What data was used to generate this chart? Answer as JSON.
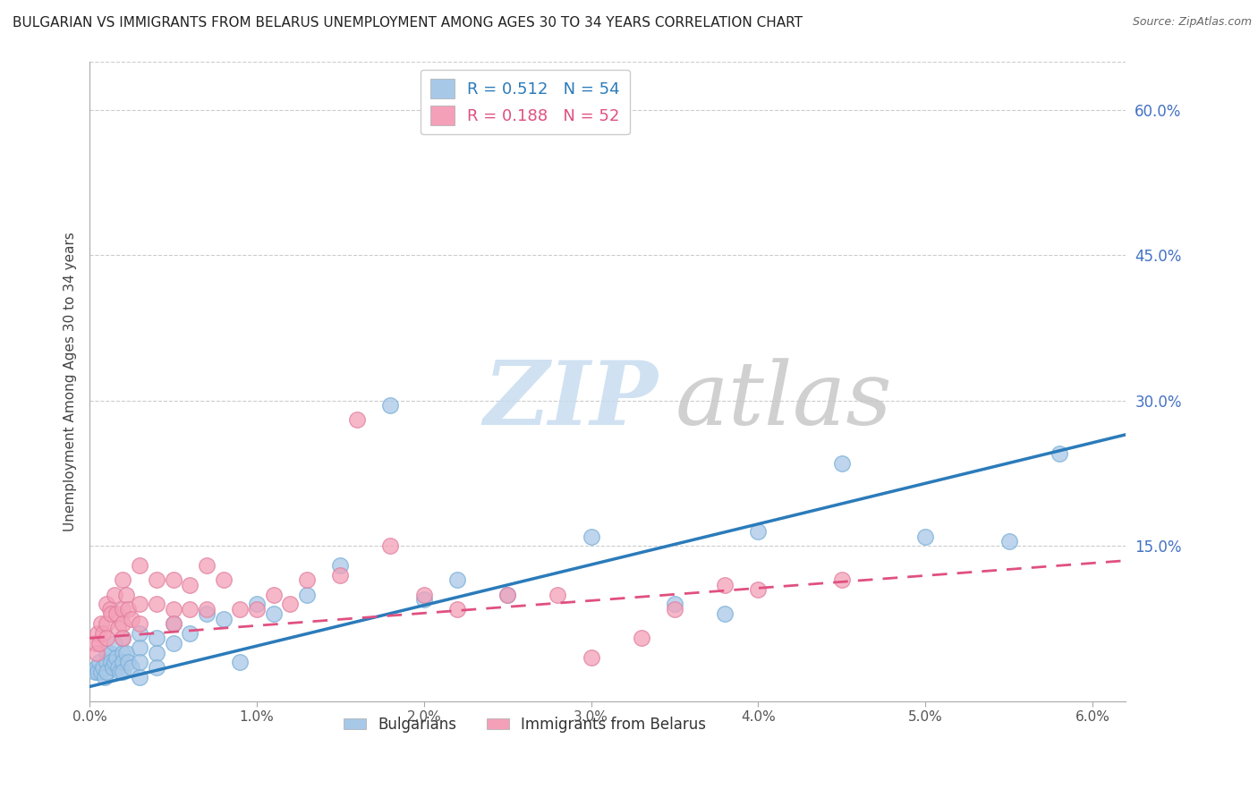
{
  "title": "BULGARIAN VS IMMIGRANTS FROM BELARUS UNEMPLOYMENT AMONG AGES 30 TO 34 YEARS CORRELATION CHART",
  "source": "Source: ZipAtlas.com",
  "ylabel": "Unemployment Among Ages 30 to 34 years",
  "xlim": [
    0.0,
    0.062
  ],
  "ylim": [
    -0.01,
    0.65
  ],
  "xticks": [
    0.0,
    0.01,
    0.02,
    0.03,
    0.04,
    0.05,
    0.06
  ],
  "xticklabels": [
    "0.0%",
    "1.0%",
    "2.0%",
    "3.0%",
    "4.0%",
    "5.0%",
    "6.0%"
  ],
  "yticks_right": [
    0.15,
    0.3,
    0.45,
    0.6
  ],
  "ytick_right_labels": [
    "15.0%",
    "30.0%",
    "45.0%",
    "60.0%"
  ],
  "grid_color": "#cccccc",
  "background_color": "#ffffff",
  "blue_color": "#a8c8e8",
  "pink_color": "#f4a0b8",
  "blue_line_color": "#2b7bba",
  "pink_line_color": "#e05080",
  "watermark_zip_color": "#c8dcf0",
  "watermark_atlas_color": "#c8c8c8",
  "title_fontsize": 11,
  "label_fontsize": 11,
  "tick_fontsize": 11,
  "blue_trend_x": [
    0.0,
    0.062
  ],
  "blue_trend_y": [
    0.005,
    0.265
  ],
  "pink_trend_x": [
    0.0,
    0.062
  ],
  "pink_trend_y": [
    0.055,
    0.135
  ],
  "blue_scatter_x": [
    0.0003,
    0.0004,
    0.0005,
    0.0006,
    0.0007,
    0.0008,
    0.0009,
    0.001,
    0.001,
    0.001,
    0.0012,
    0.0013,
    0.0014,
    0.0015,
    0.0015,
    0.0016,
    0.0017,
    0.0018,
    0.002,
    0.002,
    0.002,
    0.002,
    0.0022,
    0.0023,
    0.0025,
    0.003,
    0.003,
    0.003,
    0.003,
    0.004,
    0.004,
    0.004,
    0.005,
    0.005,
    0.006,
    0.007,
    0.008,
    0.009,
    0.01,
    0.011,
    0.013,
    0.015,
    0.018,
    0.02,
    0.022,
    0.025,
    0.03,
    0.035,
    0.038,
    0.04,
    0.045,
    0.05,
    0.055,
    0.058
  ],
  "blue_scatter_y": [
    0.02,
    0.025,
    0.02,
    0.03,
    0.02,
    0.025,
    0.015,
    0.04,
    0.03,
    0.02,
    0.04,
    0.03,
    0.025,
    0.05,
    0.03,
    0.035,
    0.025,
    0.02,
    0.055,
    0.04,
    0.03,
    0.02,
    0.04,
    0.03,
    0.025,
    0.06,
    0.045,
    0.03,
    0.015,
    0.055,
    0.04,
    0.025,
    0.07,
    0.05,
    0.06,
    0.08,
    0.075,
    0.03,
    0.09,
    0.08,
    0.1,
    0.13,
    0.295,
    0.095,
    0.115,
    0.1,
    0.16,
    0.09,
    0.08,
    0.165,
    0.235,
    0.16,
    0.155,
    0.245
  ],
  "pink_scatter_x": [
    0.0003,
    0.0004,
    0.0005,
    0.0006,
    0.0007,
    0.0008,
    0.001,
    0.001,
    0.001,
    0.0012,
    0.0013,
    0.0015,
    0.0016,
    0.0017,
    0.002,
    0.002,
    0.002,
    0.002,
    0.0022,
    0.0023,
    0.0025,
    0.003,
    0.003,
    0.003,
    0.004,
    0.004,
    0.005,
    0.005,
    0.005,
    0.006,
    0.006,
    0.007,
    0.007,
    0.008,
    0.009,
    0.01,
    0.011,
    0.012,
    0.013,
    0.015,
    0.016,
    0.018,
    0.02,
    0.022,
    0.025,
    0.028,
    0.03,
    0.033,
    0.035,
    0.038,
    0.04,
    0.045
  ],
  "pink_scatter_y": [
    0.05,
    0.04,
    0.06,
    0.05,
    0.07,
    0.06,
    0.09,
    0.07,
    0.055,
    0.085,
    0.08,
    0.1,
    0.08,
    0.065,
    0.115,
    0.085,
    0.07,
    0.055,
    0.1,
    0.085,
    0.075,
    0.13,
    0.09,
    0.07,
    0.115,
    0.09,
    0.115,
    0.085,
    0.07,
    0.11,
    0.085,
    0.13,
    0.085,
    0.115,
    0.085,
    0.085,
    0.1,
    0.09,
    0.115,
    0.12,
    0.28,
    0.15,
    0.1,
    0.085,
    0.1,
    0.1,
    0.035,
    0.055,
    0.085,
    0.11,
    0.105,
    0.115
  ]
}
